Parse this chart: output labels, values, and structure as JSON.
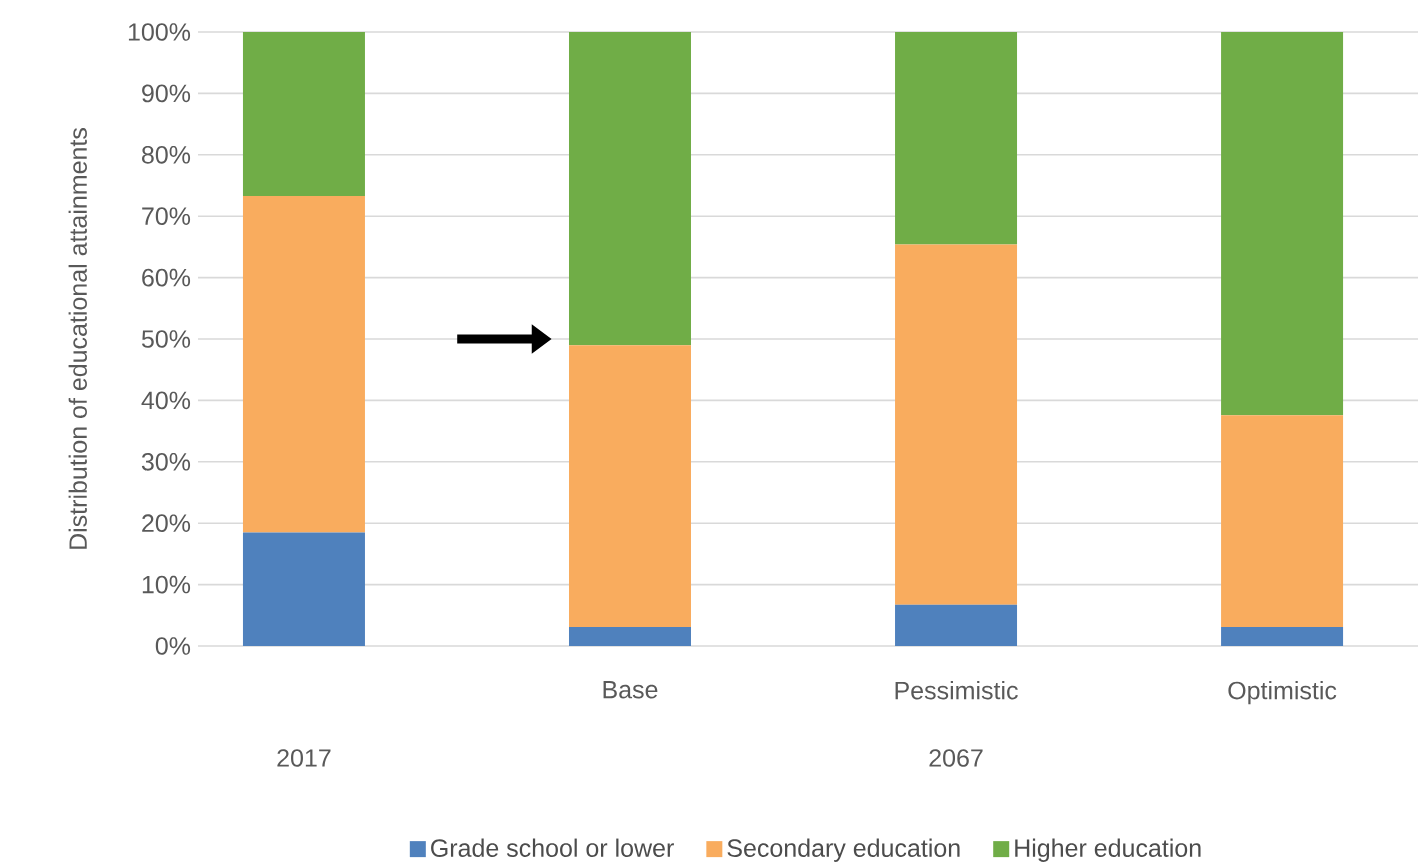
{
  "chart_data": {
    "type": "bar",
    "stacked": true,
    "ylabel": "Distribution of educational attainments",
    "categories": [
      null,
      "Base",
      "Pessimistic",
      "Optimistic"
    ],
    "series": [
      {
        "name": "Grade school or lower",
        "color": "#4f81bd",
        "values": [
          18.5,
          3.1,
          6.7,
          3.1
        ]
      },
      {
        "name": "Secondary education",
        "color": "#f9ac5e",
        "values": [
          54.8,
          45.9,
          58.7,
          34.5
        ]
      },
      {
        "name": "Higher education",
        "color": "#70ad47",
        "values": [
          26.7,
          51.0,
          34.6,
          62.4
        ]
      }
    ],
    "ylim": [
      0,
      100
    ],
    "yticks": [
      {
        "value": 0,
        "label": "0%"
      },
      {
        "value": 10,
        "label": "10%"
      },
      {
        "value": 20,
        "label": "20%"
      },
      {
        "value": 30,
        "label": "30%"
      },
      {
        "value": 40,
        "label": "40%"
      },
      {
        "value": 50,
        "label": "50%"
      },
      {
        "value": 60,
        "label": "60%"
      },
      {
        "value": 70,
        "label": "70%"
      },
      {
        "value": 80,
        "label": "80%"
      },
      {
        "value": 90,
        "label": "90%"
      },
      {
        "value": 100,
        "label": "100%"
      }
    ],
    "grid": "y",
    "legend": "bottom",
    "annotations": [
      "2017",
      "2067"
    ]
  }
}
